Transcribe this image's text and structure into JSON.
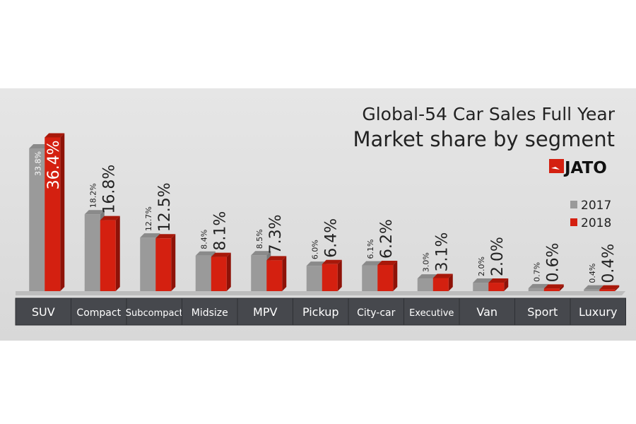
{
  "chart_data": {
    "type": "bar",
    "title": "Global-54 Car Sales Full Year",
    "subtitle": "Market share by segment",
    "brand": "JATO",
    "categories": [
      "SUV",
      "Compact",
      "Subcompact",
      "Midsize",
      "MPV",
      "Pickup",
      "City-car",
      "Executive",
      "Van",
      "Sport",
      "Luxury"
    ],
    "series": [
      {
        "name": "2017",
        "color": "#9a9a9a",
        "values": [
          33.8,
          18.2,
          12.7,
          8.4,
          8.5,
          6.0,
          6.1,
          3.0,
          2.0,
          0.7,
          0.4
        ],
        "labels": [
          "33.8%",
          "18.2%",
          "12.7%",
          "8.4%",
          "8.5%",
          "6.0%",
          "6.1%",
          "3.0%",
          "2.0%",
          "0.7%",
          "0.4%"
        ]
      },
      {
        "name": "2018",
        "color": "#d42010",
        "values": [
          36.4,
          16.8,
          12.5,
          8.1,
          7.3,
          6.4,
          6.2,
          3.1,
          2.0,
          0.6,
          0.4
        ],
        "labels": [
          "36.4%",
          "16.8%",
          "12.5%",
          "8.1%",
          "7.3%",
          "6.4%",
          "6.2%",
          "3.1%",
          "2.0%",
          "0.6%",
          "0.4%"
        ]
      }
    ],
    "ylim": [
      0,
      37
    ],
    "legend": "right",
    "grid": false
  }
}
